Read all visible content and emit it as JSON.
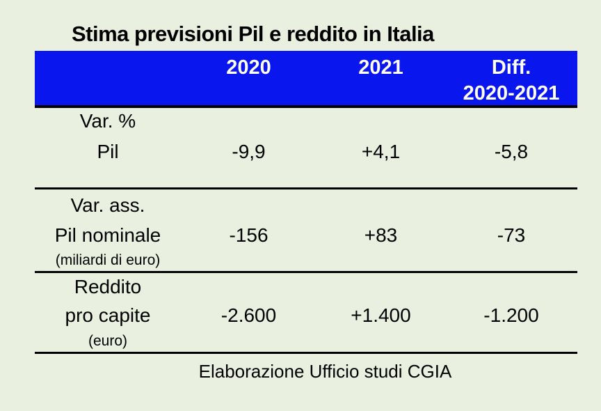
{
  "colors": {
    "background": "#e9f0e0",
    "header_bg": "#0a16ee",
    "header_text": "#ffffff",
    "body_text": "#000000",
    "rule_line": "#000000"
  },
  "title": "Stima previsioni Pil e reddito in Italia",
  "table": {
    "header": {
      "col_2020": "2020",
      "col_2021": "2021",
      "col_diff_line1": "Diff.",
      "col_diff_line2": "2020-2021"
    },
    "rows": [
      {
        "line1": "Var. %",
        "line2": "Pil",
        "line3": "",
        "values": [
          "-9,9",
          "+4,1",
          "-5,8"
        ]
      },
      {
        "line1": "Var. ass.",
        "line2": "Pil nominale",
        "line3": "(miliardi di euro)",
        "values": [
          "-156",
          "+83",
          "-73"
        ]
      },
      {
        "line1": "Reddito",
        "line2": "pro capite",
        "line3": "(euro)",
        "values": [
          "-2.600",
          "+1.400",
          "-1.200"
        ]
      }
    ],
    "footer": "Elaborazione Ufficio studi CGIA"
  },
  "chart_data": {
    "type": "table",
    "title": "Stima previsioni Pil e reddito in Italia",
    "columns": [
      "",
      "2020",
      "2021",
      "Diff. 2020-2021"
    ],
    "rows": [
      {
        "label": "Var. % Pil",
        "values_display": [
          "-9,9",
          "+4,1",
          "-5,8"
        ],
        "values": [
          -9.9,
          4.1,
          -5.8
        ]
      },
      {
        "label": "Var. ass. Pil nominale (miliardi di euro)",
        "values_display": [
          "-156",
          "+83",
          "-73"
        ],
        "values": [
          -156,
          83,
          -73
        ]
      },
      {
        "label": "Reddito pro capite (euro)",
        "values_display": [
          "-2.600",
          "+1.400",
          "-1.200"
        ],
        "values": [
          -2600,
          1400,
          -1200
        ]
      }
    ],
    "source": "Elaborazione Ufficio studi CGIA"
  }
}
